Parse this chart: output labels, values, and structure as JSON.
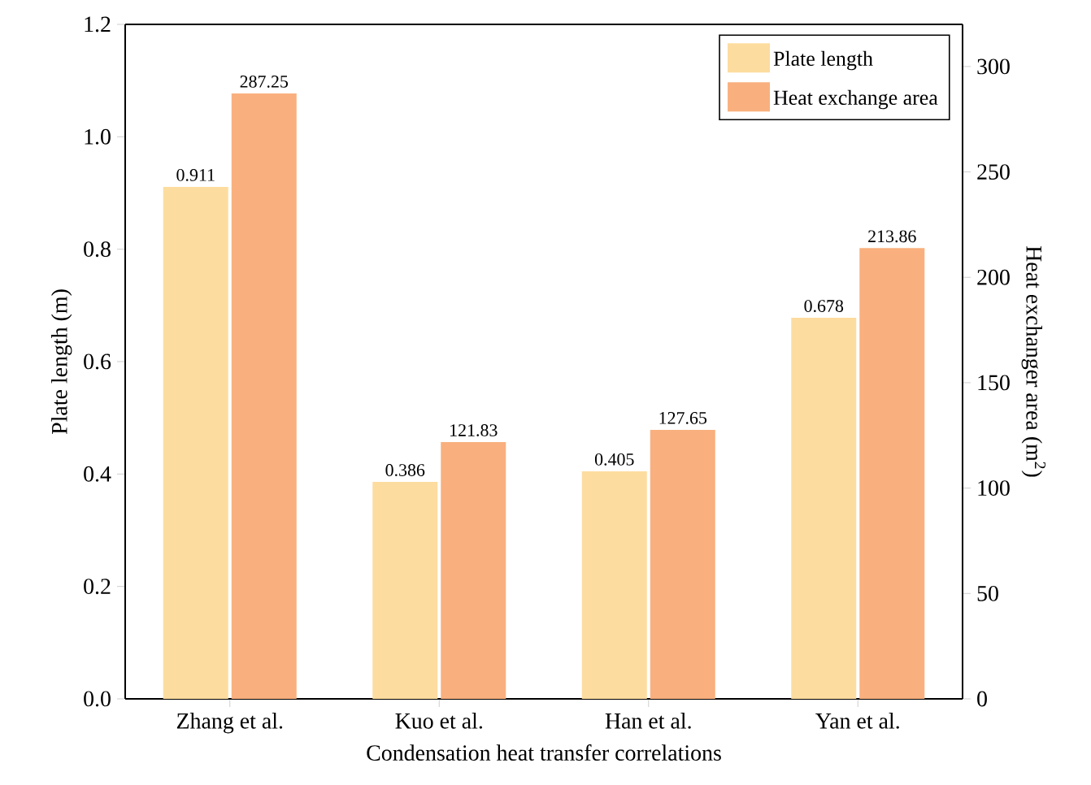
{
  "chart_data": {
    "type": "bar",
    "xlabel": "Condensation heat transfer correlations",
    "ylabel": "Plate length (m)",
    "y2label": "Heat exchanger area (m$^{2}$)",
    "categories": [
      "Zhang et al.",
      "Kuo et al.",
      "Han et al.",
      "Yan et al."
    ],
    "series": [
      {
        "name": "Plate length",
        "color": "#fddc9f",
        "values": [
          0.911,
          0.386,
          0.405,
          0.678
        ]
      },
      {
        "name": "Heat exchange area",
        "color": "#f9b07e",
        "axis": "y2",
        "values": [
          287.25,
          121.83,
          127.65,
          213.86
        ]
      }
    ],
    "ylim": [
      0,
      1.2
    ],
    "yticks": [
      {
        "value": 0,
        "label": "0.0"
      },
      0.2,
      0.4,
      0.6,
      0.8,
      {
        "value": 1.0,
        "label": "1.0"
      },
      1.2
    ],
    "y2lim": [
      0,
      320
    ],
    "y2ticks": [
      0,
      50,
      100,
      150,
      200,
      250,
      300
    ],
    "data_labels": true,
    "legend": "top right",
    "grid": false
  }
}
